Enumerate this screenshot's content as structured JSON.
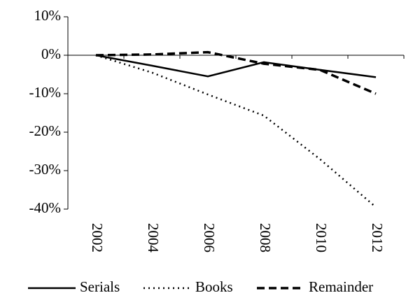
{
  "chart_data": {
    "type": "line",
    "categories": [
      "2002",
      "2004",
      "2006",
      "2008",
      "2010",
      "2012"
    ],
    "series": [
      {
        "name": "Serials",
        "color": "#000000",
        "line_style": "solid",
        "values": [
          0,
          -2.7,
          -5.5,
          -1.8,
          -3.8,
          -5.7
        ]
      },
      {
        "name": "Books",
        "color": "#000000",
        "line_style": "dotted",
        "values": [
          0,
          -4.5,
          -10.2,
          -15.7,
          -27,
          -39.5
        ]
      },
      {
        "name": "Remainder",
        "color": "#000000",
        "line_style": "dashed",
        "values": [
          0,
          0.2,
          0.8,
          -2.2,
          -3.8,
          -10
        ]
      }
    ],
    "ylim": [
      -40,
      10
    ],
    "yticks": [
      {
        "value": -40,
        "label": "-40%"
      },
      {
        "value": -30,
        "label": "-30%"
      },
      {
        "value": -20,
        "label": "-20%"
      },
      {
        "value": -10,
        "label": "-10%"
      },
      {
        "value": 0,
        "label": "0%"
      },
      {
        "value": 10,
        "label": "10%"
      }
    ],
    "grid": false,
    "legend": "bottom"
  }
}
